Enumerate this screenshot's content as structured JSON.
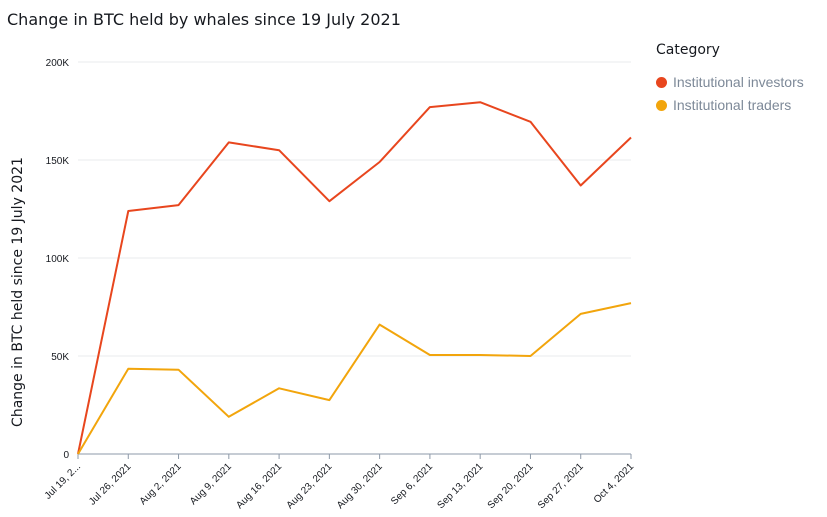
{
  "chart_data": {
    "type": "line",
    "title": "Change in BTC held by whales since 19 July 2021",
    "xlabel": "",
    "ylabel": "Change in BTC held since 19 July 2021",
    "categories": [
      "Jul 19, 2...",
      "Jul 26, 2021",
      "Aug 2, 2021",
      "Aug 9, 2021",
      "Aug 16, 2021",
      "Aug 23, 2021",
      "Aug 30, 2021",
      "Sep 6, 2021",
      "Sep 13, 2021",
      "Sep 20, 2021",
      "Sep 27, 2021",
      "Oct 4, 2021"
    ],
    "ylim": [
      0,
      200000
    ],
    "yticks": [
      {
        "value": 0,
        "label": "0"
      },
      {
        "value": 50000,
        "label": "50K"
      },
      {
        "value": 100000,
        "label": "100K"
      },
      {
        "value": 150000,
        "label": "150K"
      },
      {
        "value": 200000,
        "label": "200K"
      }
    ],
    "grid": true,
    "legend": {
      "title": "Category",
      "position": "right"
    },
    "series": [
      {
        "name": "Institutional investors",
        "color": "#e8461e",
        "values": [
          0,
          124000,
          127000,
          159000,
          155000,
          129000,
          149000,
          177000,
          179500,
          169500,
          137000,
          161500
        ]
      },
      {
        "name": "Institutional traders",
        "color": "#f2a50c",
        "values": [
          0,
          43500,
          43000,
          19000,
          33500,
          27500,
          66000,
          50500,
          50500,
          50000,
          71500,
          77000
        ]
      }
    ]
  }
}
